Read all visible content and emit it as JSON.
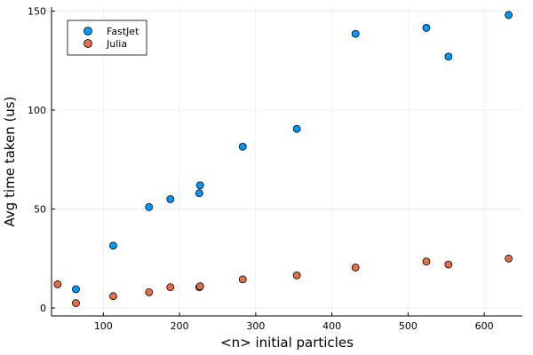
{
  "chart_data": {
    "type": "scatter",
    "title": "",
    "xlabel": "<n> initial particles",
    "ylabel": "Avg time taken (us)",
    "xlim": [
      32,
      650
    ],
    "ylim": [
      -4,
      152
    ],
    "xticks": [
      100,
      200,
      300,
      400,
      500,
      600
    ],
    "yticks": [
      0,
      50,
      100,
      150
    ],
    "grid": true,
    "legend_position": "top-left",
    "series": [
      {
        "name": "FastJet",
        "color": "#009AFA",
        "x": [
          64,
          113,
          160,
          188,
          226,
          227,
          283,
          354,
          431,
          524,
          553,
          632
        ],
        "y": [
          9.5,
          31.5,
          51,
          55,
          58,
          62,
          81.5,
          90.5,
          138.5,
          141.5,
          127,
          148
        ]
      },
      {
        "name": "Julia",
        "color": "#E36F47",
        "x": [
          40,
          64,
          113,
          160,
          188,
          226,
          227,
          283,
          354,
          431,
          524,
          553,
          632
        ],
        "y": [
          12,
          2.5,
          6,
          8,
          10.5,
          10.5,
          11,
          14.5,
          16.5,
          20.5,
          23.5,
          22,
          25
        ]
      }
    ]
  }
}
